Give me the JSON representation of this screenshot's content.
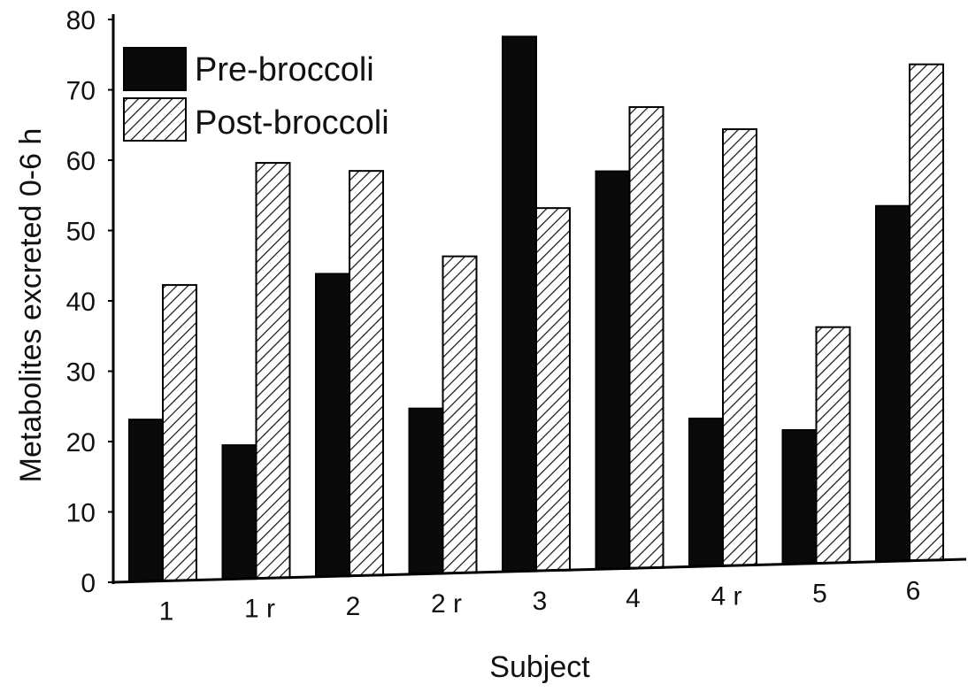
{
  "chart_data": {
    "type": "bar",
    "title": "",
    "xlabel": "Subject",
    "ylabel": "Metabolites excreted 0-6 h",
    "ylim": [
      0,
      80
    ],
    "yticks": [
      "0",
      "10",
      "20",
      "30",
      "40",
      "50",
      "60",
      "70",
      "80"
    ],
    "categories": [
      "1",
      "1 r",
      "2",
      "2 r",
      "3",
      "4",
      "4 r",
      "5",
      "6"
    ],
    "series": [
      {
        "name": "Pre-broccoli",
        "values": [
          23,
          19,
          43,
          23.5,
          76,
          56.5,
          21,
          19,
          50.5
        ],
        "fill": "solid",
        "color": "#0a0a0a"
      },
      {
        "name": "Post-broccoli",
        "values": [
          42,
          59,
          57.5,
          45,
          51.5,
          65.5,
          62,
          33.5,
          70.5
        ],
        "fill": "hatched",
        "color": "#111111"
      }
    ],
    "legend": {
      "placement": "top-left"
    },
    "grid": false
  }
}
